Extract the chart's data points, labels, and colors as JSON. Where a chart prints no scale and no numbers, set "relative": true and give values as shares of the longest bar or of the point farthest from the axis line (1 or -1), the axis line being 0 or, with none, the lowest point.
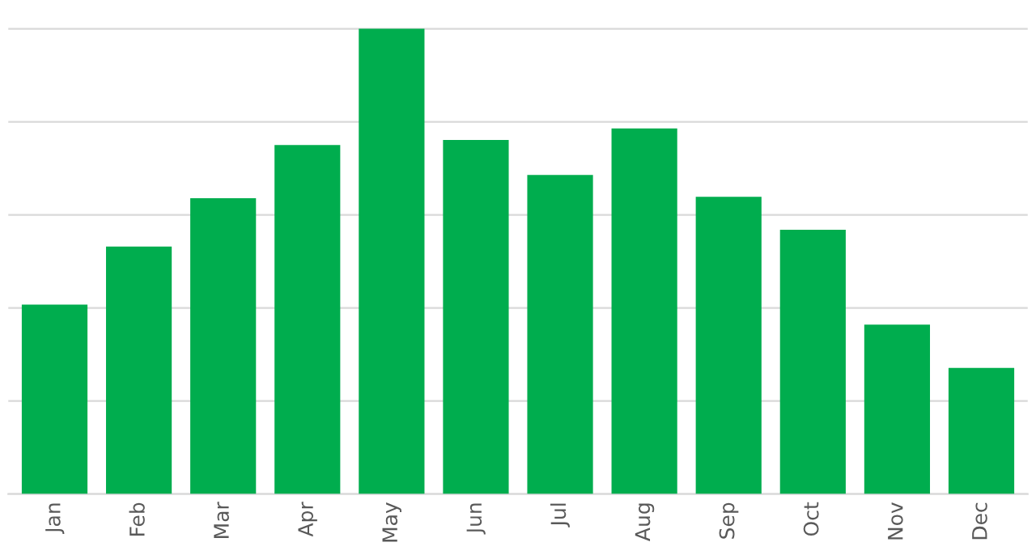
{
  "chart_data": {
    "type": "bar",
    "relative": true,
    "categories": [
      "Jan",
      "Feb",
      "Mar",
      "Apr",
      "May",
      "Jun",
      "Jul",
      "Aug",
      "Sep",
      "Oct",
      "Nov",
      "Dec"
    ],
    "values": [
      0.407,
      0.532,
      0.636,
      0.75,
      1,
      0.761,
      0.686,
      0.786,
      0.639,
      0.568,
      0.364,
      0.271
    ],
    "color": "#00ad4e",
    "grid": "y",
    "legend": false
  }
}
